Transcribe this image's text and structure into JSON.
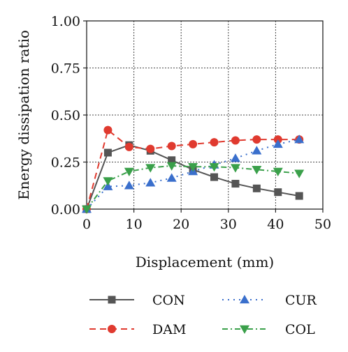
{
  "chart_data": {
    "type": "line",
    "xlabel": "Displacement (mm)",
    "ylabel": "Energy dissipation ratio",
    "xlim": [
      0,
      50
    ],
    "ylim": [
      0,
      1.0
    ],
    "x_ticks": [
      "0",
      "10",
      "20",
      "30",
      "40",
      "50"
    ],
    "y_ticks": [
      "0.00",
      "0.25",
      "0.50",
      "0.75",
      "1.00"
    ],
    "grid": true,
    "legend_position": "bottom",
    "series": [
      {
        "name": "CON",
        "color": "#555555",
        "marker": "square",
        "line_style": "solid",
        "x": [
          0,
          4.5,
          9,
          13.5,
          18,
          22.5,
          27,
          31.5,
          36,
          40.5,
          45
        ],
        "y": [
          0.0,
          0.3,
          0.34,
          0.31,
          0.26,
          0.21,
          0.17,
          0.135,
          0.11,
          0.09,
          0.07
        ]
      },
      {
        "name": "DAM",
        "color": "#e03a2f",
        "marker": "circle",
        "line_style": "dashed",
        "x": [
          0,
          4.5,
          9,
          13.5,
          18,
          22.5,
          27,
          31.5,
          36,
          40.5,
          45
        ],
        "y": [
          0.0,
          0.42,
          0.33,
          0.32,
          0.335,
          0.345,
          0.355,
          0.365,
          0.37,
          0.37,
          0.37
        ]
      },
      {
        "name": "CUR",
        "color": "#3a6fcc",
        "marker": "triangle-up",
        "line_style": "dotted",
        "x": [
          0,
          4.5,
          9,
          13.5,
          18,
          22.5,
          27,
          31.5,
          36,
          40.5,
          45
        ],
        "y": [
          0.0,
          0.12,
          0.125,
          0.14,
          0.165,
          0.2,
          0.235,
          0.27,
          0.31,
          0.345,
          0.37
        ]
      },
      {
        "name": "COL",
        "color": "#3aa04a",
        "marker": "triangle-down",
        "line_style": "dashdot",
        "x": [
          0,
          4.5,
          9,
          13.5,
          18,
          22.5,
          27,
          31.5,
          36,
          40.5,
          45
        ],
        "y": [
          0.0,
          0.15,
          0.2,
          0.22,
          0.23,
          0.225,
          0.225,
          0.22,
          0.21,
          0.2,
          0.19
        ]
      }
    ]
  }
}
